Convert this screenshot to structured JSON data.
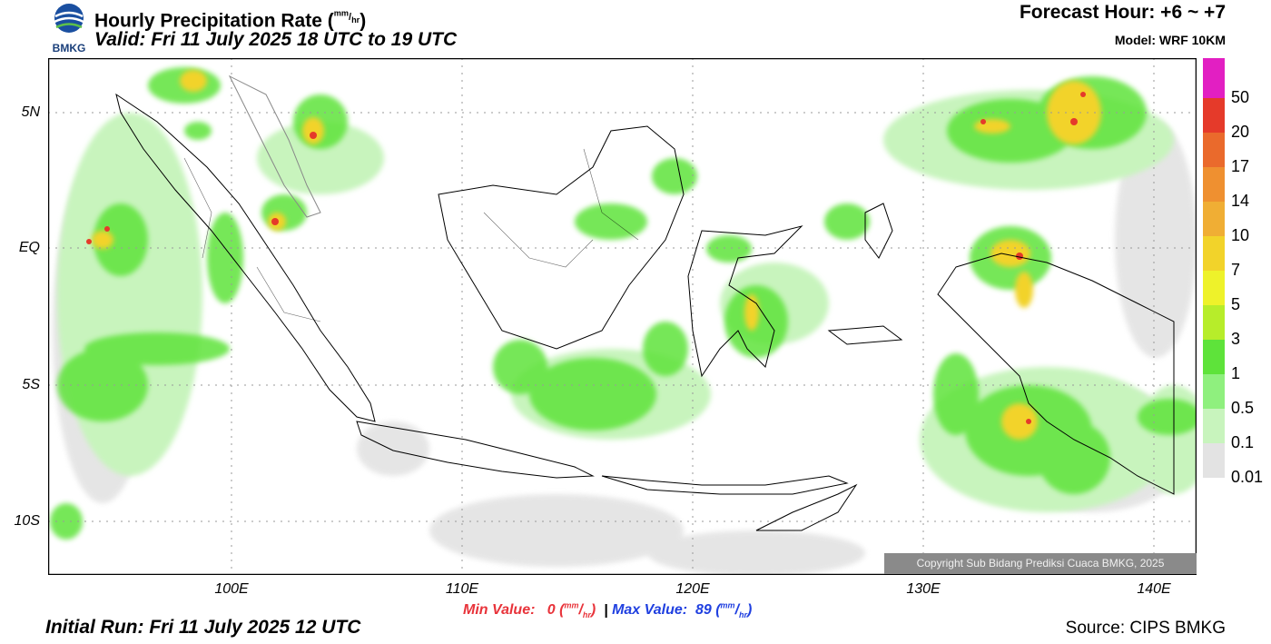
{
  "header": {
    "title_main": "Hourly Precipitation Rate (",
    "title_unit_num": "mm",
    "title_unit_den": "hr",
    "title_close": ")",
    "valid": "Valid: Fri 11 July 2025 18 UTC to 19 UTC",
    "forecast_hour": "Forecast Hour: +6 ~ +7",
    "model": "Model: WRF 10KM",
    "logo_text": "BMKG"
  },
  "map": {
    "y_labels": [
      "5N",
      "EQ",
      "5S",
      "10S"
    ],
    "x_labels": [
      "100E",
      "110E",
      "120E",
      "130E",
      "140E"
    ],
    "copyright": "Copyright Sub Bidang Prediksi Cuaca BMKG, 2025"
  },
  "legend": {
    "levels": [
      "50",
      "20",
      "17",
      "14",
      "10",
      "7",
      "5",
      "3",
      "1",
      "0.5",
      "0.1",
      "0.01"
    ],
    "colors": [
      "#e21fc2",
      "#e53a2a",
      "#ea6a2c",
      "#ef9030",
      "#f0ae34",
      "#f2d32a",
      "#eef22a",
      "#b7ed2a",
      "#5ee33a",
      "#8ff07e",
      "#c8f4bd",
      "#e3e3e3"
    ]
  },
  "footer": {
    "min_label": "Min Value:",
    "min_value": "0",
    "max_label": "Max Value:",
    "max_value": "89",
    "unit_num": "mm",
    "unit_den": "hr",
    "separator": "|",
    "initial_run": "Initial Run: Fri 11 July 2025 12 UTC",
    "source": "Source: CIPS BMKG"
  }
}
